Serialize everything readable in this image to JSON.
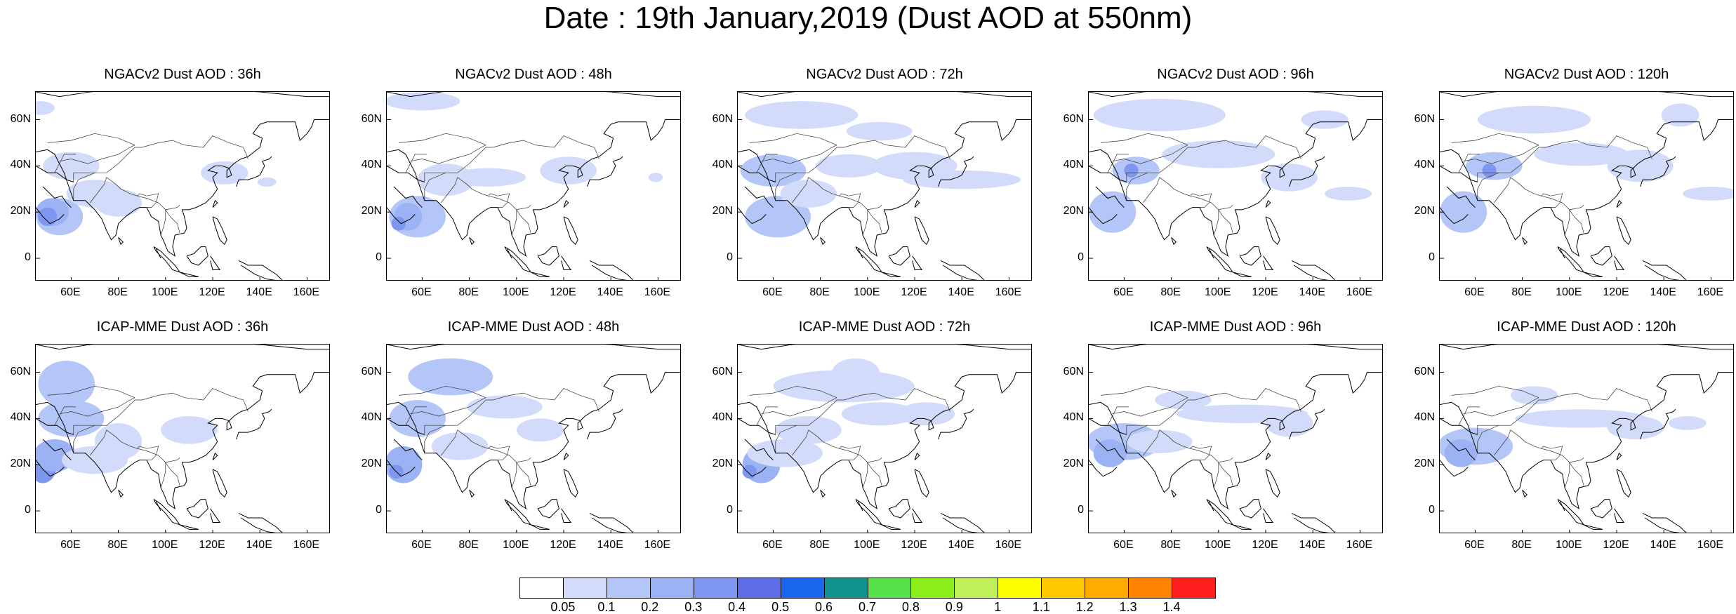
{
  "title": "Date : 19th January,2019 (Dust AOD at 550nm)",
  "panels": [
    {
      "title": "NGACv2 Dust AOD : 36h"
    },
    {
      "title": "NGACv2 Dust AOD : 48h"
    },
    {
      "title": "NGACv2 Dust AOD : 72h"
    },
    {
      "title": "NGACv2 Dust AOD : 96h"
    },
    {
      "title": "NGACv2 Dust AOD : 120h"
    },
    {
      "title": "ICAP-MME Dust AOD : 36h"
    },
    {
      "title": "ICAP-MME Dust AOD : 48h"
    },
    {
      "title": "ICAP-MME Dust AOD : 72h"
    },
    {
      "title": "ICAP-MME Dust AOD : 96h"
    },
    {
      "title": "ICAP-MME Dust AOD : 120h"
    }
  ],
  "lat_ticks": [
    "60N",
    "40N",
    "20N",
    "0"
  ],
  "lon_ticks": [
    "60E",
    "80E",
    "100E",
    "120E",
    "140E",
    "160E"
  ],
  "colorbar": {
    "labels": [
      "0.05",
      "0.1",
      "0.2",
      "0.3",
      "0.4",
      "0.5",
      "0.6",
      "0.7",
      "0.8",
      "0.9",
      "1",
      "1.1",
      "1.2",
      "1.3",
      "1.4"
    ],
    "colors": [
      "#ffffff",
      "#d2dcfa",
      "#b4c6f8",
      "#9bb2f4",
      "#7d96ef",
      "#5d6de6",
      "#1b66ee",
      "#10928e",
      "#58e24a",
      "#8cee1a",
      "#bff05a",
      "#ffff00",
      "#ffc800",
      "#ffab00",
      "#ff8200",
      "#ff1f1f"
    ]
  }
}
